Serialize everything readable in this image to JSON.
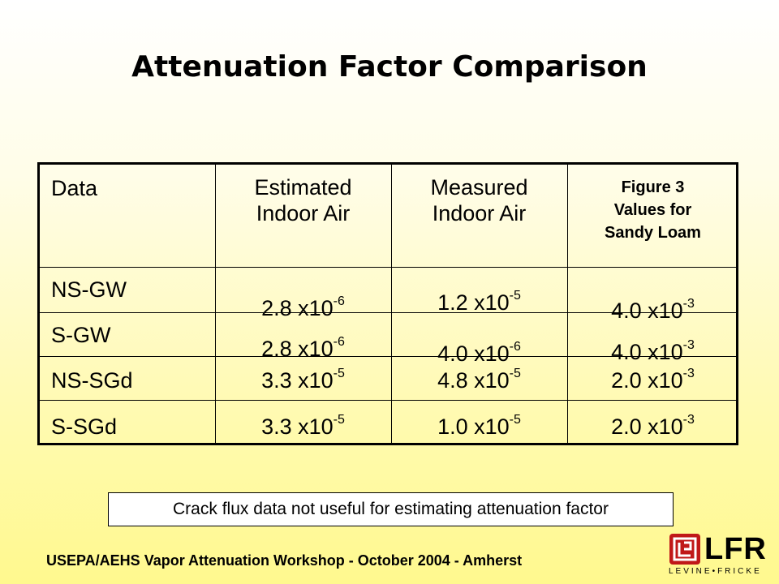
{
  "title": "Attenuation Factor Comparison",
  "table": {
    "headers": {
      "col1": "Data",
      "col2_line1": "Estimated",
      "col2_line2": "Indoor Air",
      "col3_line1": "Measured",
      "col3_line2": "Indoor Air",
      "col4_line1": "Figure 3",
      "col4_line2": "Values for",
      "col4_line3": "Sandy Loam"
    },
    "rows": [
      {
        "label": "NS-GW",
        "est": {
          "m": "2.8 x10",
          "e": "-6"
        },
        "meas": {
          "m": "1.2 x10",
          "e": "-5"
        },
        "fig3": {
          "m": "4.0 x10",
          "e": "-3"
        }
      },
      {
        "label": "S-GW",
        "est": {
          "m": "2.8 x10",
          "e": "-6"
        },
        "meas": {
          "m": "4.0 x10",
          "e": "-6"
        },
        "fig3": {
          "m": "4.0 x10",
          "e": "-3"
        }
      },
      {
        "label": "NS-SGd",
        "est": {
          "m": "3.3 x10",
          "e": "-5"
        },
        "meas": {
          "m": "4.8 x10",
          "e": "-5"
        },
        "fig3": {
          "m": "2.0 x10",
          "e": "-3"
        }
      },
      {
        "label": "S-SGd",
        "est": {
          "m": "3.3 x10",
          "e": "-5"
        },
        "meas": {
          "m": "1.0 x10",
          "e": "-5"
        },
        "fig3": {
          "m": "2.0 x10",
          "e": "-3"
        }
      }
    ]
  },
  "note": "Crack flux data not useful for estimating attenuation factor",
  "footer": "USEPA/AEHS Vapor Attenuation Workshop - October 2004 - Amherst",
  "logo": {
    "text": "LFR",
    "subtext": "LEVINE•FRICKE",
    "color": "#c01818"
  }
}
